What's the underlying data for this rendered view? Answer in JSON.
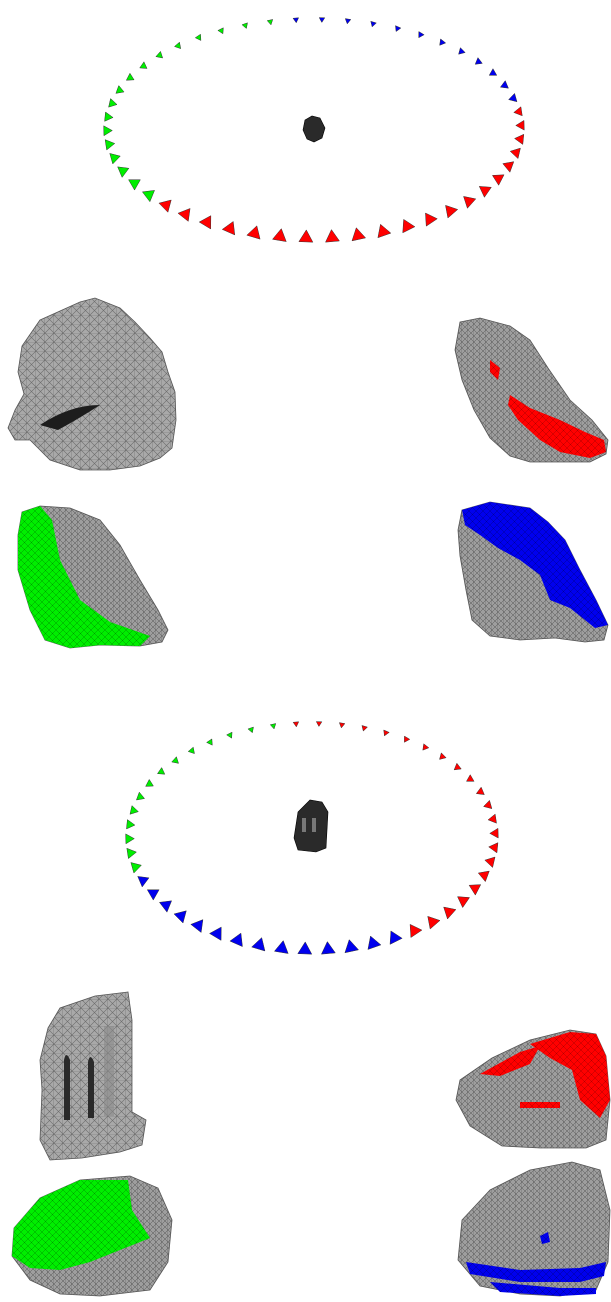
{
  "figure": {
    "colors": {
      "red": "#ff0000",
      "green": "#00ee00",
      "blue": "#0000ee",
      "mesh_gray": "#a9a9a9",
      "mesh_dark": "#2a2a2a",
      "background": "#ffffff"
    },
    "panels": [
      {
        "id": "shell",
        "ring": {
          "camera_count": 50,
          "segments": [
            {
              "color": "blue",
              "from": 0,
              "to": 12
            },
            {
              "color": "red",
              "from": 12,
              "to": 33
            },
            {
              "color": "green",
              "from": 33,
              "to": 50
            }
          ]
        },
        "views": [
          {
            "name": "full",
            "highlight": "none"
          },
          {
            "name": "red-view",
            "highlight": "red"
          },
          {
            "name": "green-view",
            "highlight": "green"
          },
          {
            "name": "blue-view",
            "highlight": "blue"
          }
        ]
      },
      {
        "id": "temple",
        "ring": {
          "camera_count": 50,
          "segments": [
            {
              "color": "red",
              "from": 0,
              "to": 22
            },
            {
              "color": "blue",
              "from": 22,
              "to": 36
            },
            {
              "color": "green",
              "from": 36,
              "to": 50
            }
          ]
        },
        "views": [
          {
            "name": "full",
            "highlight": "none"
          },
          {
            "name": "red-view",
            "highlight": "red"
          },
          {
            "name": "green-view",
            "highlight": "green"
          },
          {
            "name": "blue-view",
            "highlight": "blue"
          }
        ]
      }
    ]
  }
}
